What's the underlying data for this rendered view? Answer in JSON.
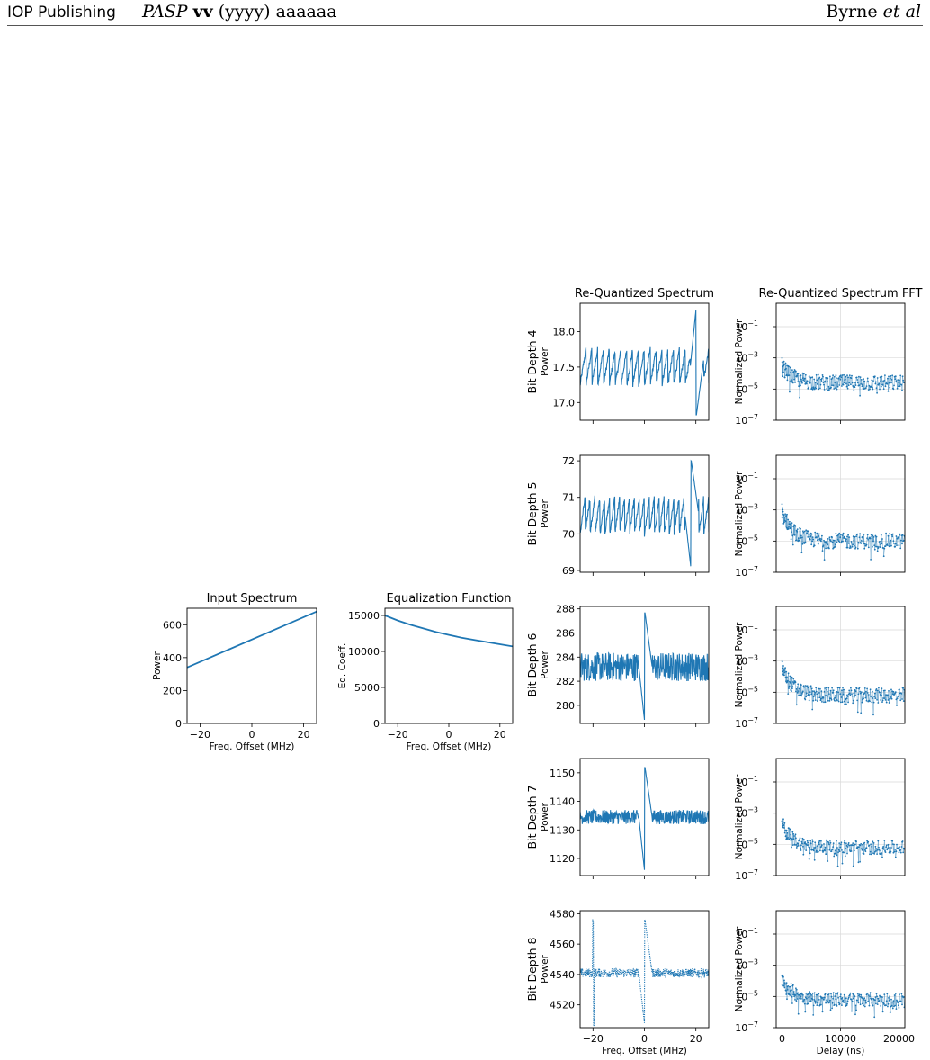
{
  "header": {
    "publisher": "IOP Publishing",
    "journal_abbrev": "PASP",
    "volume": "vv",
    "year": "(yyyy)",
    "article": "aaaaaa",
    "authors_name": "Byrne",
    "authors_etal": "et al"
  },
  "colors": {
    "series": "#1f77b4",
    "grid": "#d9d9d9"
  },
  "chart_data": [
    {
      "id": "input",
      "type": "line",
      "title": "Input Spectrum",
      "xlabel": "Freq. Offset (MHz)",
      "ylabel": "Power",
      "xlim": [
        -25,
        25
      ],
      "ylim": [
        0,
        700
      ],
      "xticks": [
        -20,
        0,
        20
      ],
      "xtick_labels": [
        "−20",
        "0",
        "20"
      ],
      "yticks": [
        0,
        200,
        400,
        600
      ],
      "ytick_labels": [
        "0",
        "200",
        "400",
        "600"
      ],
      "x": [
        -25,
        25
      ],
      "y": [
        340,
        680
      ]
    },
    {
      "id": "equalization",
      "type": "line",
      "title": "Equalization Function",
      "xlabel": "Freq. Offset (MHz)",
      "ylabel": "Eq. Coeff.",
      "xlim": [
        -25,
        25
      ],
      "ylim": [
        0,
        16000
      ],
      "xticks": [
        -20,
        0,
        20
      ],
      "xtick_labels": [
        "−20",
        "0",
        "20"
      ],
      "yticks": [
        0,
        5000,
        10000,
        15000
      ],
      "ytick_labels": [
        "0",
        "5000",
        "10000",
        "15000"
      ],
      "x": [
        -25,
        -20,
        -15,
        -10,
        -5,
        0,
        5,
        10,
        15,
        20,
        25
      ],
      "y": [
        15000,
        14300,
        13700,
        13200,
        12700,
        12300,
        11900,
        11600,
        11300,
        11000,
        10700
      ]
    },
    {
      "id": "rq4",
      "type": "line",
      "title": "Re-Quantized Spectrum",
      "row_label": "Bit Depth 4",
      "ylabel": "Power",
      "xlim": [
        -25,
        25
      ],
      "ylim": [
        16.75,
        18.4
      ],
      "yticks": [
        17.0,
        17.5,
        18.0
      ],
      "ytick_labels": [
        "17.0",
        "17.5",
        "18.0"
      ],
      "pattern": "sawtooth",
      "base": 17.5,
      "amplitude": 0.25,
      "teeth": 22,
      "spike": {
        "x": 20,
        "from": 18.3,
        "to": 16.82,
        "end": 17.6
      }
    },
    {
      "id": "rq5",
      "type": "line",
      "row_label": "Bit Depth 5",
      "ylabel": "Power",
      "xlim": [
        -25,
        25
      ],
      "ylim": [
        68.95,
        72.15
      ],
      "yticks": [
        69,
        70,
        71,
        72
      ],
      "ytick_labels": [
        "69",
        "70",
        "71",
        "72"
      ],
      "pattern": "sawtooth",
      "base": 70.5,
      "amplitude": 0.5,
      "teeth": 26,
      "spike": {
        "x": 18,
        "from": 69.1,
        "to": 72.0,
        "end": 70.6
      }
    },
    {
      "id": "rq6",
      "type": "line",
      "row_label": "Bit Depth 6",
      "ylabel": "Power",
      "xlim": [
        -25,
        25
      ],
      "ylim": [
        278.5,
        288.2
      ],
      "yticks": [
        280,
        282,
        284,
        286,
        288
      ],
      "ytick_labels": [
        "280",
        "282",
        "284",
        "286",
        "288"
      ],
      "pattern": "noise",
      "base": 283.2,
      "amplitude": 1.2,
      "spike": {
        "x": 0,
        "from": 278.8,
        "to": 287.7,
        "end": 283.2
      }
    },
    {
      "id": "rq7",
      "type": "line",
      "row_label": "Bit Depth 7",
      "ylabel": "Power",
      "xlim": [
        -25,
        25
      ],
      "ylim": [
        1114,
        1155
      ],
      "yticks": [
        1120,
        1130,
        1140,
        1150
      ],
      "ytick_labels": [
        "1120",
        "1130",
        "1140",
        "1150"
      ],
      "pattern": "noise",
      "base": 1134.5,
      "amplitude": 2.5,
      "spike": {
        "x": 0,
        "from": 1116,
        "to": 1152,
        "end": 1134.5
      }
    },
    {
      "id": "rq8",
      "type": "line",
      "row_label": "Bit Depth 8",
      "xlabel": "Freq. Offset (MHz)",
      "ylabel": "Power",
      "xlim": [
        -25,
        25
      ],
      "ylim": [
        4505,
        4582
      ],
      "xticks": [
        -20,
        0,
        20
      ],
      "xtick_labels": [
        "−20",
        "0",
        "20"
      ],
      "yticks": [
        4520,
        4540,
        4560,
        4580
      ],
      "ytick_labels": [
        "4520",
        "4540",
        "4560",
        "4580"
      ],
      "pattern": "noise",
      "base": 4541,
      "amplitude": 3,
      "dotted": true,
      "spike": {
        "x": 0,
        "from": 4508,
        "to": 4576,
        "end": 4541
      },
      "spike2": {
        "x": -20,
        "from": 4506,
        "to": 4576
      }
    },
    {
      "id": "fft4",
      "type": "scatter",
      "title": "Re-Quantized Spectrum FFT",
      "ylabel": "Normalized Power",
      "yscale": "log",
      "xlim": [
        -1000,
        21000
      ],
      "ylim_log10": [
        -7,
        0.5
      ],
      "yticks_log10": [
        -7,
        -5,
        -3,
        -1
      ],
      "ytick_labels": [
        "10",
        "10",
        "10",
        "10"
      ],
      "ytick_exponents": [
        "−7",
        "−5",
        "−3",
        "−1"
      ],
      "xticks": [
        0,
        10000,
        20000
      ],
      "start_log10": -3.5,
      "floor_log10": -4.6,
      "scatter_spread": 0.5
    },
    {
      "id": "fft5",
      "type": "scatter",
      "ylabel": "Normalized Power",
      "yscale": "log",
      "xlim": [
        -1000,
        21000
      ],
      "ylim_log10": [
        -7,
        0.5
      ],
      "yticks_log10": [
        -7,
        -5,
        -3,
        -1
      ],
      "ytick_labels": [
        "10",
        "10",
        "10",
        "10"
      ],
      "ytick_exponents": [
        "−7",
        "−5",
        "−3",
        "−1"
      ],
      "xticks": [
        0,
        10000,
        20000
      ],
      "start_log10": -3.0,
      "floor_log10": -5.0,
      "scatter_spread": 0.5
    },
    {
      "id": "fft6",
      "type": "scatter",
      "ylabel": "Normalized Power",
      "yscale": "log",
      "xlim": [
        -1000,
        21000
      ],
      "ylim_log10": [
        -7,
        0.5
      ],
      "yticks_log10": [
        -7,
        -5,
        -3,
        -1
      ],
      "ytick_labels": [
        "10",
        "10",
        "10",
        "10"
      ],
      "ytick_exponents": [
        "−7",
        "−5",
        "−3",
        "−1"
      ],
      "xticks": [
        0,
        10000,
        20000
      ],
      "start_log10": -3.4,
      "floor_log10": -5.2,
      "scatter_spread": 0.5
    },
    {
      "id": "fft7",
      "type": "scatter",
      "ylabel": "Normalized Power",
      "yscale": "log",
      "xlim": [
        -1000,
        21000
      ],
      "ylim_log10": [
        -7,
        0.5
      ],
      "yticks_log10": [
        -7,
        -5,
        -3,
        -1
      ],
      "ytick_labels": [
        "10",
        "10",
        "10",
        "10"
      ],
      "ytick_exponents": [
        "−7",
        "−5",
        "−3",
        "−1"
      ],
      "xticks": [
        0,
        10000,
        20000
      ],
      "start_log10": -3.6,
      "floor_log10": -5.2,
      "scatter_spread": 0.45
    },
    {
      "id": "fft8",
      "type": "scatter",
      "xlabel": "Delay (ns)",
      "ylabel": "Normalized Power",
      "yscale": "log",
      "xlim": [
        -1000,
        21000
      ],
      "ylim_log10": [
        -7,
        0.5
      ],
      "yticks_log10": [
        -7,
        -5,
        -3,
        -1
      ],
      "ytick_labels": [
        "10",
        "10",
        "10",
        "10"
      ],
      "ytick_exponents": [
        "−7",
        "−5",
        "−3",
        "−1"
      ],
      "xticks": [
        0,
        10000,
        20000
      ],
      "xtick_labels": [
        "0",
        "10000",
        "20000"
      ],
      "start_log10": -3.8,
      "floor_log10": -5.2,
      "scatter_spread": 0.45
    }
  ]
}
